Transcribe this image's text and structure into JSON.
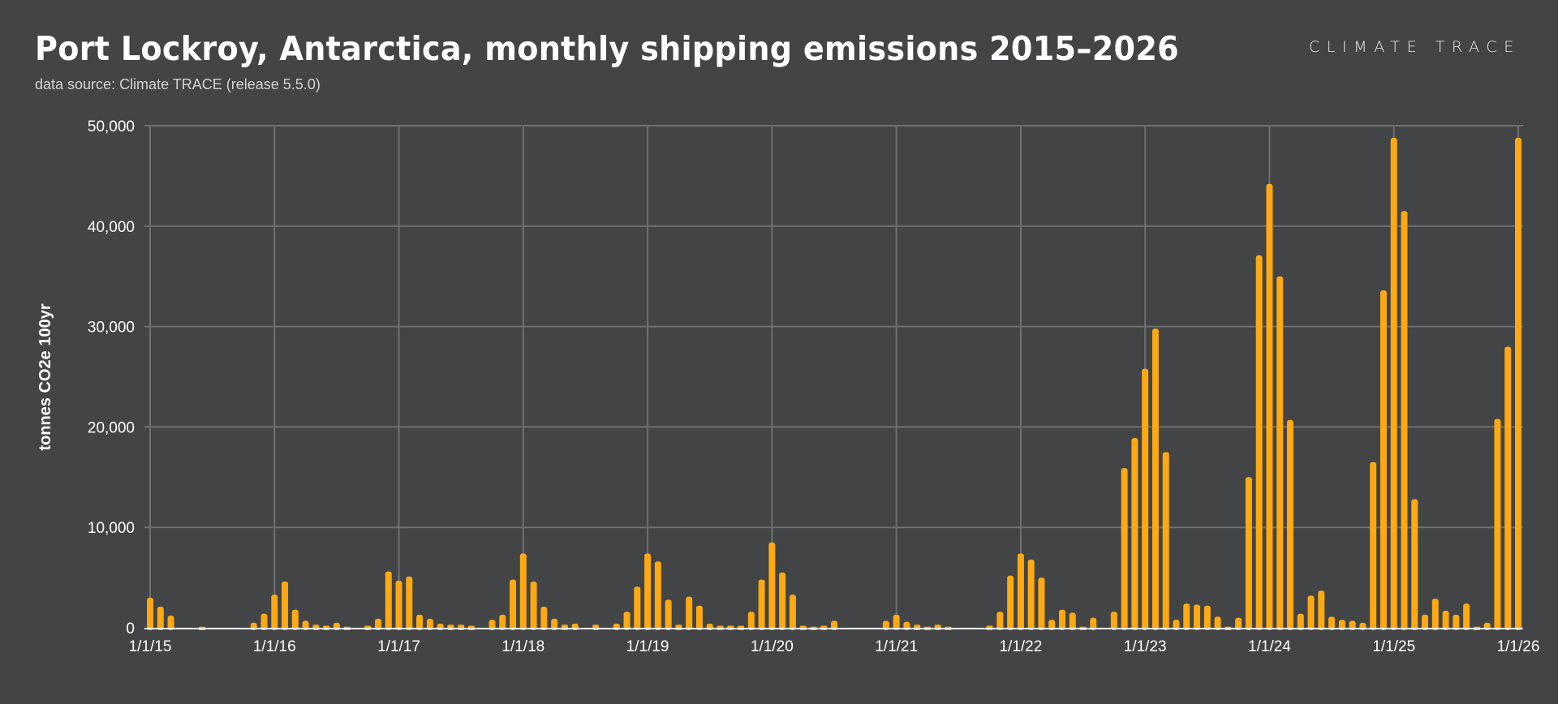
{
  "header": {
    "title": "Port Lockroy, Antarctica, monthly shipping emissions 2015–2026",
    "subtitle": "data source: Climate TRACE (release 5.5.0)",
    "logo": "CLIMATE TRACE"
  },
  "colors": {
    "background": "#434446",
    "bar": "#fca913",
    "grid": "#6f6f70",
    "axis": "#ffffff"
  },
  "chart_data": {
    "type": "bar",
    "title": "Port Lockroy, Antarctica, monthly shipping emissions 2015–2026",
    "xlabel": "",
    "ylabel": "tonnes CO2e 100yr",
    "ylim": [
      0,
      50000
    ],
    "yticks": [
      0,
      10000,
      20000,
      30000,
      40000,
      50000
    ],
    "ytick_labels": [
      "0",
      "10,000",
      "20,000",
      "30,000",
      "40,000",
      "50,000"
    ],
    "xtick_labels": [
      "1/1/15",
      "1/1/16",
      "1/1/17",
      "1/1/18",
      "1/1/19",
      "1/1/20",
      "1/1/21",
      "1/1/22",
      "1/1/23",
      "1/1/24",
      "1/1/25",
      "1/1/26"
    ],
    "start_month": "2015-01",
    "grid": true,
    "values": [
      3000,
      2100,
      1200,
      0,
      0,
      100,
      0,
      0,
      0,
      0,
      500,
      1400,
      3300,
      4600,
      1800,
      700,
      300,
      200,
      500,
      100,
      0,
      200,
      900,
      5600,
      4700,
      5100,
      1300,
      900,
      400,
      300,
      300,
      200,
      0,
      800,
      1300,
      4800,
      7400,
      4600,
      2100,
      900,
      300,
      400,
      0,
      300,
      0,
      400,
      1600,
      4100,
      7400,
      6600,
      2800,
      300,
      3100,
      2200,
      400,
      200,
      200,
      200,
      1600,
      4800,
      8500,
      5500,
      3300,
      200,
      100,
      200,
      700,
      0,
      0,
      0,
      0,
      700,
      1300,
      600,
      300,
      100,
      300,
      100,
      0,
      0,
      0,
      200,
      1600,
      5200,
      7400,
      6800,
      5000,
      800,
      1800,
      1500,
      100,
      1000,
      0,
      1600,
      15900,
      18900,
      25800,
      29800,
      17500,
      800,
      2400,
      2300,
      2200,
      1100,
      100,
      1000,
      15000,
      37100,
      44200,
      35000,
      20700,
      1400,
      3200,
      3700,
      1100,
      800,
      700,
      500,
      16500,
      33600,
      48800,
      41500,
      12800,
      1300,
      2900,
      1700,
      1300,
      2400,
      100,
      500,
      20800,
      28000,
      48800
    ]
  }
}
